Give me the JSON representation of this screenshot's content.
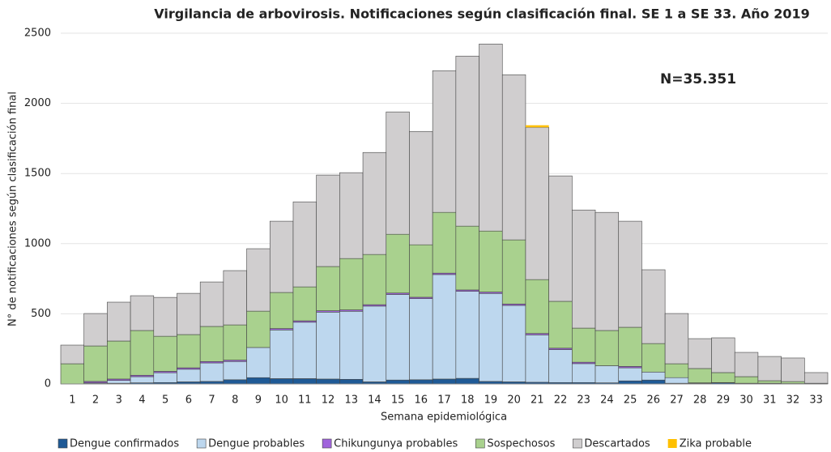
{
  "chart_data": {
    "type": "stacked-bar",
    "title": "Virgilancia de arbovirosis. Notificaciones según clasificación final. SE 1 a SE 33. Año 2019",
    "annotation": "N=35.351",
    "x_label": "Semana  epidemiológica",
    "y_label": "N° de notificaciones según clasificación final",
    "categories": [
      "1",
      "2",
      "3",
      "4",
      "5",
      "6",
      "7",
      "8",
      "9",
      "10",
      "11",
      "12",
      "13",
      "14",
      "15",
      "16",
      "17",
      "18",
      "19",
      "20",
      "21",
      "22",
      "23",
      "24",
      "25",
      "26",
      "27",
      "28",
      "29",
      "30",
      "31",
      "32",
      "33"
    ],
    "ylim": [
      0,
      2500
    ],
    "yticks": [
      0,
      500,
      1000,
      1500,
      2000,
      2500
    ],
    "grid": true,
    "series": [
      {
        "name": "Dengue confirmados",
        "color": "#1f5a96",
        "values": [
          0,
          3,
          5,
          8,
          10,
          15,
          18,
          30,
          45,
          38,
          38,
          35,
          33,
          15,
          28,
          30,
          35,
          40,
          18,
          15,
          12,
          10,
          10,
          8,
          22,
          28,
          5,
          5,
          8,
          3,
          2,
          2,
          0
        ]
      },
      {
        "name": "Dengue probables",
        "color": "#bdd7ee",
        "values": [
          0,
          5,
          20,
          44,
          70,
          90,
          132,
          130,
          215,
          347,
          402,
          477,
          485,
          540,
          610,
          578,
          745,
          620,
          627,
          545,
          338,
          235,
          135,
          122,
          93,
          57,
          40,
          3,
          2,
          2,
          3,
          1,
          2
        ]
      },
      {
        "name": "Chikungunya probables",
        "color": "#a064dc",
        "values": [
          0,
          10,
          10,
          10,
          10,
          10,
          10,
          10,
          0,
          10,
          10,
          10,
          10,
          10,
          10,
          10,
          10,
          10,
          10,
          10,
          10,
          10,
          10,
          0,
          10,
          0,
          0,
          0,
          0,
          0,
          0,
          0,
          0
        ]
      },
      {
        "name": "Sospechosos",
        "color": "#a9d18e",
        "values": [
          144,
          253,
          271,
          319,
          250,
          237,
          250,
          251,
          259,
          257,
          242,
          315,
          366,
          358,
          419,
          374,
          433,
          455,
          435,
          457,
          384,
          334,
          243,
          251,
          279,
          203,
          99,
          102,
          71,
          47,
          18,
          14,
          3
        ]
      },
      {
        "name": "Descartados",
        "color": "#d0cecf",
        "values": [
          133,
          231,
          277,
          248,
          277,
          294,
          317,
          387,
          445,
          508,
          606,
          652,
          612,
          727,
          872,
          808,
          1010,
          1212,
          1333,
          1177,
          1085,
          894,
          842,
          842,
          756,
          526,
          358,
          213,
          248,
          173,
          173,
          168,
          76
        ]
      },
      {
        "name": "Zika probable",
        "color": "#ffc000",
        "values": [
          0,
          0,
          0,
          0,
          0,
          0,
          0,
          0,
          0,
          0,
          0,
          0,
          0,
          0,
          0,
          0,
          0,
          0,
          0,
          0,
          15,
          0,
          0,
          0,
          0,
          0,
          0,
          0,
          0,
          0,
          0,
          0,
          0
        ]
      }
    ]
  }
}
